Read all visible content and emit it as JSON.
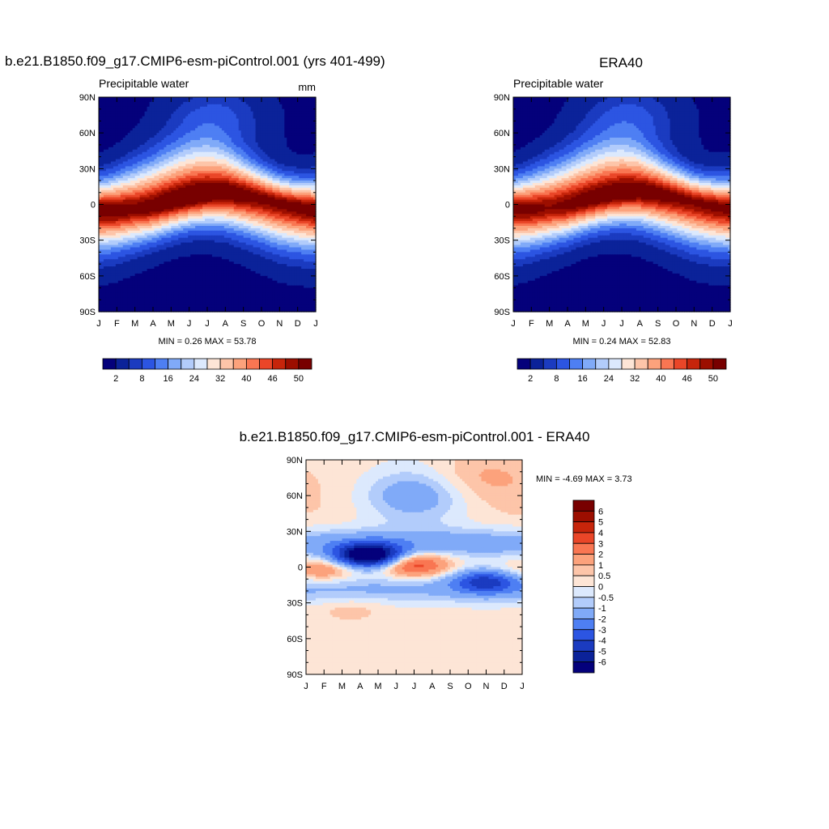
{
  "chart_data": [
    {
      "id": "model",
      "type": "contour",
      "title": "b.e21.B1850.f09_g17.CMIP6-esm-piControl.001 (yrs 401-499)",
      "subtitle_left": "Precipitable water",
      "subtitle_right": "mm",
      "x_ticks": [
        "J",
        "F",
        "M",
        "A",
        "M",
        "J",
        "J",
        "A",
        "S",
        "O",
        "N",
        "D",
        "J"
      ],
      "y_ticks": [
        "90N",
        "60N",
        "30N",
        "0",
        "30S",
        "60S",
        "90S"
      ],
      "ylim": [
        -90,
        90
      ],
      "stats": "MIN =   0.26 MAX =  53.78",
      "min": 0.26,
      "max": 53.78,
      "peak_lat_by_month": [
        -5,
        -5,
        -4,
        -2,
        2,
        6,
        9,
        10,
        8,
        5,
        1,
        -2,
        -5
      ],
      "peak_value_by_month": [
        52,
        52,
        51,
        52,
        53,
        53.78,
        53.5,
        53,
        52,
        51,
        51,
        51.5,
        52
      ],
      "colorbar_labels": [
        "2",
        "8",
        "16",
        "24",
        "32",
        "40",
        "46",
        "50"
      ]
    },
    {
      "id": "obs",
      "type": "contour",
      "title": "ERA40",
      "subtitle_left": "Precipitable water",
      "x_ticks": [
        "J",
        "F",
        "M",
        "A",
        "M",
        "J",
        "J",
        "A",
        "S",
        "O",
        "N",
        "D",
        "J"
      ],
      "y_ticks": [
        "90N",
        "60N",
        "30N",
        "0",
        "30S",
        "60S",
        "90S"
      ],
      "ylim": [
        -90,
        90
      ],
      "stats": "MIN =   0.24 MAX =  52.83",
      "min": 0.24,
      "max": 52.83,
      "peak_lat_by_month": [
        -4,
        -4,
        -3,
        -1,
        3,
        7,
        10,
        11,
        9,
        6,
        2,
        -1,
        -4
      ],
      "peak_value_by_month": [
        51,
        51,
        50,
        51,
        52,
        52.5,
        52.83,
        52.5,
        52,
        51,
        50.5,
        51,
        51
      ],
      "colorbar_labels": [
        "2",
        "8",
        "16",
        "24",
        "32",
        "40",
        "46",
        "50"
      ]
    },
    {
      "id": "diff",
      "type": "contour",
      "title": "b.e21.B1850.f09_g17.CMIP6-esm-piControl.001 - ERA40",
      "x_ticks": [
        "J",
        "F",
        "M",
        "A",
        "M",
        "J",
        "J",
        "A",
        "S",
        "O",
        "N",
        "D",
        "J"
      ],
      "y_ticks": [
        "90N",
        "60N",
        "30N",
        "0",
        "30S",
        "60S",
        "90S"
      ],
      "ylim": [
        -90,
        90
      ],
      "stats": "MIN =  -4.69 MAX =   3.73",
      "min": -4.69,
      "max": 3.73,
      "levels": [
        -6,
        -5,
        -4,
        -3,
        -2,
        -1,
        -0.5,
        0,
        0.5,
        1,
        2,
        3,
        4,
        5,
        6
      ],
      "colorbar_labels": [
        "6",
        "5",
        "4",
        "3",
        "2",
        "1",
        "0.5",
        "0",
        "-0.5",
        "-1",
        "-2",
        "-3",
        "-4",
        "-5",
        "-6"
      ],
      "features": [
        {
          "month": 3.2,
          "lat": 9,
          "value": -4.3
        },
        {
          "month": 3.8,
          "lat": 10,
          "value": -3.8
        },
        {
          "month": 6.0,
          "lat": 2,
          "value": 3.73
        },
        {
          "month": 1.0,
          "lat": -2,
          "value": 2.0
        },
        {
          "month": 10.0,
          "lat": -12,
          "value": -4.0
        },
        {
          "month": 6.0,
          "lat": 60,
          "value": -1.5
        },
        {
          "month": 9.5,
          "lat": 75,
          "value": 0.8
        },
        {
          "month": 2.5,
          "lat": -35,
          "value": 0.6
        },
        {
          "month": 12.0,
          "lat": -3,
          "value": 0.8
        }
      ]
    }
  ],
  "colors": {
    "abs_palette": [
      "#04007b",
      "#0b2299",
      "#1b3bc0",
      "#2c55e2",
      "#4e7ff3",
      "#80aaf8",
      "#b2ccfb",
      "#dce9fd",
      "#fde5d6",
      "#fdc5a9",
      "#fca27c",
      "#f97652",
      "#ea4628",
      "#c7250b",
      "#9c0e00",
      "#780000"
    ],
    "diff_palette": [
      "#04007b",
      "#0b2299",
      "#1b3bc0",
      "#2c55e2",
      "#4e7ff3",
      "#80aaf8",
      "#b2ccfb",
      "#dce9fd",
      "#fde5d6",
      "#fdc5a9",
      "#fca27c",
      "#f97652",
      "#ea4628",
      "#c7250b",
      "#9c0e00",
      "#780000"
    ]
  }
}
